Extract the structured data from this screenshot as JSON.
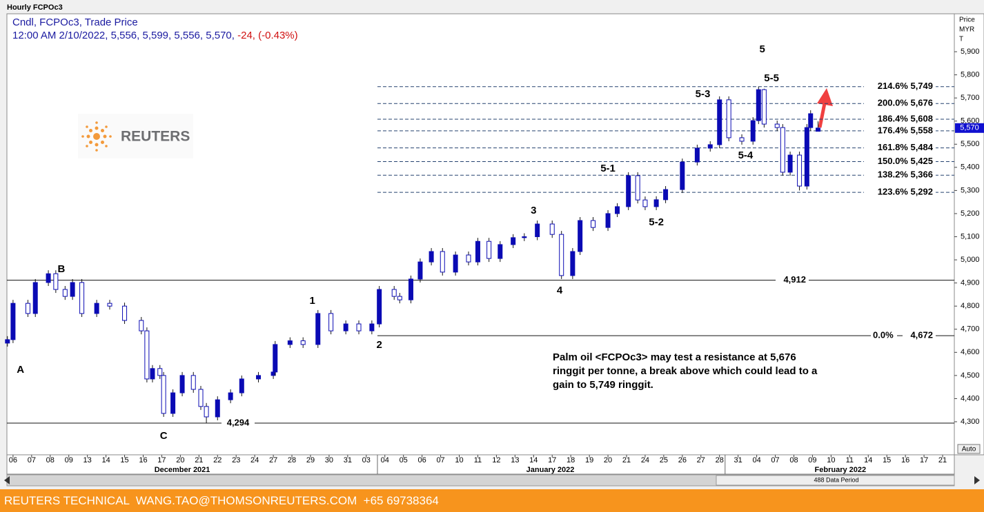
{
  "chart_data": {
    "type": "candlestick",
    "title": "Hourly FCPOc3",
    "subtitle": "Cndl, FCPOc3, Trade Price",
    "info": "12:00 AM 2/10/2022, 5,556, 5,599, 5,556, 5,570,",
    "change": "-24, (-0.43%)",
    "axis_title": [
      "Price",
      "MYR",
      "T"
    ],
    "logo": "REUTERS",
    "color": "#0a0ab4",
    "ylim": [
      4157,
      6064
    ],
    "yticks": [
      {
        "value": 4300,
        "label": "4,300"
      },
      {
        "value": 4400,
        "label": "4,400"
      },
      {
        "value": 4500,
        "label": "4,500"
      },
      {
        "value": 4600,
        "label": "4,600"
      },
      {
        "value": 4700,
        "label": "4,700"
      },
      {
        "value": 4800,
        "label": "4,800"
      },
      {
        "value": 4900,
        "label": "4,900"
      },
      {
        "value": 5000,
        "label": "5,000"
      },
      {
        "value": 5100,
        "label": "5,100"
      },
      {
        "value": 5200,
        "label": "5,200"
      },
      {
        "value": 5300,
        "label": "5,300"
      },
      {
        "value": 5400,
        "label": "5,400"
      },
      {
        "value": 5500,
        "label": "5,500"
      },
      {
        "value": 5600,
        "label": "5,600"
      },
      {
        "value": 5700,
        "label": "5,700"
      },
      {
        "value": 5800,
        "label": "5,800"
      },
      {
        "value": 5900,
        "label": "5,900"
      }
    ],
    "xlim": [
      -0.33,
      50.63
    ],
    "xticks": [
      {
        "value": 0,
        "label": "06"
      },
      {
        "value": 1,
        "label": "07"
      },
      {
        "value": 2,
        "label": "08"
      },
      {
        "value": 3,
        "label": "09"
      },
      {
        "value": 4,
        "label": "13"
      },
      {
        "value": 5,
        "label": "14"
      },
      {
        "value": 6,
        "label": "15"
      },
      {
        "value": 7,
        "label": "16"
      },
      {
        "value": 8,
        "label": "17"
      },
      {
        "value": 9,
        "label": "20"
      },
      {
        "value": 10,
        "label": "21"
      },
      {
        "value": 11,
        "label": "22"
      },
      {
        "value": 12,
        "label": "23"
      },
      {
        "value": 13,
        "label": "24"
      },
      {
        "value": 14,
        "label": "27"
      },
      {
        "value": 15,
        "label": "28"
      },
      {
        "value": 16,
        "label": "29"
      },
      {
        "value": 17,
        "label": "30"
      },
      {
        "value": 18,
        "label": "31"
      },
      {
        "value": 19,
        "label": "03"
      },
      {
        "value": 20,
        "label": "04"
      },
      {
        "value": 21,
        "label": "05"
      },
      {
        "value": 22,
        "label": "06"
      },
      {
        "value": 23,
        "label": "07"
      },
      {
        "value": 24,
        "label": "10"
      },
      {
        "value": 25,
        "label": "11"
      },
      {
        "value": 26,
        "label": "12"
      },
      {
        "value": 27,
        "label": "13"
      },
      {
        "value": 28,
        "label": "14"
      },
      {
        "value": 29,
        "label": "17"
      },
      {
        "value": 30,
        "label": "18"
      },
      {
        "value": 31,
        "label": "19"
      },
      {
        "value": 32,
        "label": "20"
      },
      {
        "value": 33,
        "label": "21"
      },
      {
        "value": 34,
        "label": "24"
      },
      {
        "value": 35,
        "label": "25"
      },
      {
        "value": 36,
        "label": "26"
      },
      {
        "value": 37,
        "label": "27"
      },
      {
        "value": 38,
        "label": "28"
      },
      {
        "value": 39,
        "label": "31"
      },
      {
        "value": 40,
        "label": "04"
      },
      {
        "value": 41,
        "label": "07"
      },
      {
        "value": 42,
        "label": "08"
      },
      {
        "value": 43,
        "label": "09"
      },
      {
        "value": 44,
        "label": "10"
      },
      {
        "value": 45,
        "label": "11"
      },
      {
        "value": 46,
        "label": "14"
      },
      {
        "value": 47,
        "label": "15"
      },
      {
        "value": 48,
        "label": "16"
      },
      {
        "value": 49,
        "label": "17"
      },
      {
        "value": 50,
        "label": "21"
      }
    ],
    "months": [
      {
        "label": "December 2021",
        "x": 9.1
      },
      {
        "label": "January 2022",
        "x": 28.9,
        "start": 19.6
      },
      {
        "label": "February 2022",
        "x": 44.5,
        "start": 38.3
      }
    ],
    "x": [
      -0.3,
      0,
      0.8,
      1.2,
      1.9,
      2.3,
      2.8,
      3.2,
      3.7,
      4.5,
      5.2,
      6.0,
      6.9,
      7.2,
      7.5,
      7.9,
      8.1,
      8.6,
      9.1,
      9.7,
      10.1,
      10.4,
      11.0,
      11.7,
      12.3,
      13.2,
      14.0,
      14.1,
      14.9,
      15.6,
      16.4,
      17.1,
      17.9,
      18.6,
      19.3,
      19.7,
      20.5,
      20.8,
      21.4,
      21.9,
      22.5,
      23.1,
      23.8,
      24.5,
      25.0,
      25.6,
      26.2,
      26.9,
      27.5,
      28.2,
      29.0,
      29.5,
      30.1,
      30.5,
      31.2,
      32.0,
      32.5,
      33.1,
      33.6,
      34.0,
      34.6,
      35.1,
      36.0,
      36.8,
      37.5,
      38.0,
      38.5,
      39.2,
      39.8,
      40.1,
      40.4,
      41.1,
      41.4,
      41.8,
      42.3,
      42.7,
      42.9,
      43.3
    ],
    "open": [
      4640,
      4655,
      4812,
      4768,
      4902,
      4940,
      4872,
      4842,
      4902,
      4768,
      4812,
      4800,
      4738,
      4693,
      4485,
      4530,
      4500,
      4336,
      4425,
      4500,
      4440,
      4366,
      4321,
      4395,
      4425,
      4485,
      4500,
      4515,
      4634,
      4650,
      4634,
      4768,
      4693,
      4723,
      4693,
      4723,
      4872,
      4842,
      4827,
      4917,
      4991,
      5036,
      4947,
      5021,
      4991,
      5080,
      5006,
      5066,
      5096,
      5100,
      5155,
      5110,
      4932,
      5036,
      5170,
      5140,
      5200,
      5230,
      5364,
      5259,
      5230,
      5260,
      5304,
      5423,
      5483,
      5498,
      5692,
      5528,
      5513,
      5602,
      5736,
      5587,
      5572,
      5379,
      5453,
      5319,
      5572,
      5556
    ],
    "high": [
      4670,
      4827,
      4827,
      4917,
      4955,
      4955,
      4887,
      4917,
      4917,
      4827,
      4827,
      4815,
      4753,
      4708,
      4545,
      4545,
      4515,
      4440,
      4515,
      4515,
      4455,
      4381,
      4410,
      4440,
      4500,
      4515,
      4530,
      4649,
      4665,
      4665,
      4783,
      4783,
      4738,
      4738,
      4738,
      4887,
      4887,
      4857,
      4932,
      5006,
      5051,
      5051,
      5036,
      5036,
      5095,
      5095,
      5081,
      5111,
      5115,
      5170,
      5170,
      5125,
      5051,
      5185,
      5185,
      5215,
      5245,
      5379,
      5379,
      5274,
      5275,
      5319,
      5438,
      5498,
      5513,
      5707,
      5707,
      5543,
      5617,
      5749,
      5740,
      5602,
      5587,
      5468,
      5468,
      5587,
      5647,
      5599
    ],
    "low": [
      4625,
      4640,
      4753,
      4753,
      4887,
      4857,
      4827,
      4827,
      4753,
      4753,
      4785,
      4723,
      4678,
      4470,
      4470,
      4485,
      4321,
      4321,
      4410,
      4425,
      4351,
      4294,
      4306,
      4380,
      4410,
      4470,
      4485,
      4500,
      4619,
      4619,
      4619,
      4678,
      4678,
      4678,
      4678,
      4708,
      4827,
      4812,
      4812,
      4902,
      4976,
      4932,
      4932,
      4976,
      4976,
      4991,
      4991,
      5051,
      5081,
      5085,
      5095,
      4917,
      4917,
      5021,
      5125,
      5125,
      5185,
      5215,
      5244,
      5215,
      5215,
      5245,
      5289,
      5408,
      5468,
      5483,
      5513,
      5498,
      5498,
      5587,
      5572,
      5557,
      5364,
      5364,
      5300,
      5304,
      5557,
      5556
    ],
    "close": [
      4655,
      4812,
      4768,
      4902,
      4940,
      4872,
      4842,
      4902,
      4768,
      4812,
      4800,
      4738,
      4693,
      4485,
      4530,
      4500,
      4336,
      4425,
      4500,
      4440,
      4366,
      4321,
      4395,
      4425,
      4485,
      4500,
      4515,
      4634,
      4650,
      4634,
      4768,
      4693,
      4723,
      4693,
      4723,
      4872,
      4842,
      4827,
      4917,
      4991,
      5036,
      4947,
      5021,
      4991,
      5080,
      5006,
      5066,
      5096,
      5100,
      5155,
      5110,
      4932,
      5036,
      5170,
      5140,
      5200,
      5230,
      5364,
      5259,
      5230,
      5260,
      5304,
      5423,
      5483,
      5498,
      5692,
      5528,
      5513,
      5602,
      5736,
      5587,
      5572,
      5379,
      5453,
      5319,
      5572,
      5632,
      5570
    ],
    "last_label": "5,570",
    "levels": [
      {
        "value": 5749,
        "label": "214.6% 5,749",
        "style": "dashed",
        "x_from": 19.6
      },
      {
        "value": 5676,
        "label": "200.0% 5,676",
        "style": "dashed",
        "x_from": 19.6
      },
      {
        "value": 5608,
        "label": "186.4% 5,608",
        "style": "dashed",
        "x_from": 19.6
      },
      {
        "value": 5558,
        "label": "176.4% 5,558",
        "style": "dashed",
        "x_from": 19.6
      },
      {
        "value": 5484,
        "label": "161.8% 5,484",
        "style": "dashed",
        "x_from": 19.6
      },
      {
        "value": 5425,
        "label": "150.0% 5,425",
        "style": "dashed",
        "x_from": 19.6
      },
      {
        "value": 5366,
        "label": "138.2% 5,366",
        "style": "dashed",
        "x_from": 19.6
      },
      {
        "value": 5292,
        "label": "123.6% 5,292",
        "style": "dashed",
        "x_from": 19.6
      },
      {
        "value": 4912,
        "label": "4,912",
        "style": "solid"
      },
      {
        "value": 4672,
        "label": "4,672",
        "tag": "0.0%",
        "style": "solid",
        "x_from": 19.6
      },
      {
        "value": 4294,
        "label": "4,294",
        "style": "solid"
      }
    ],
    "annotations": [
      {
        "text": "A",
        "x": 0.4,
        "y": 4523
      },
      {
        "text": "B",
        "x": 2.6,
        "y": 4958
      },
      {
        "text": "C",
        "x": 8.1,
        "y": 4237
      },
      {
        "text": "1",
        "x": 16.1,
        "y": 4821
      },
      {
        "text": "2",
        "x": 19.7,
        "y": 4631
      },
      {
        "text": "3",
        "x": 28.0,
        "y": 5212
      },
      {
        "text": "4",
        "x": 29.4,
        "y": 4866
      },
      {
        "text": "5",
        "x": 40.3,
        "y": 5909
      },
      {
        "text": "5-1",
        "x": 32.0,
        "y": 5394
      },
      {
        "text": "5-2",
        "x": 34.6,
        "y": 5161
      },
      {
        "text": "5-3",
        "x": 37.1,
        "y": 5715
      },
      {
        "text": "5-4",
        "x": 39.4,
        "y": 5450
      },
      {
        "text": "5-5",
        "x": 40.8,
        "y": 5784
      }
    ],
    "note": "Palm oil <FCPOc3> may test a resistance at 5,676 ringgit per tonne, a break above which could lead to a gain to 5,749 ringgit.",
    "auto_label": "Auto",
    "scroll_label": "488 Data Period",
    "footer": "REUTERS TECHNICAL  WANG.TAO@THOMSONREUTERS.COM  +65 69738364"
  }
}
